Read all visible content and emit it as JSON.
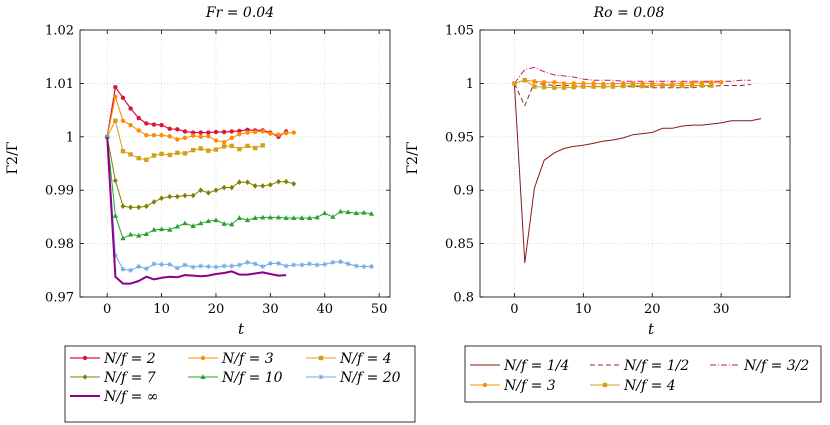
{
  "chart_data": [
    {
      "type": "line",
      "title": "Fr = 0.04",
      "xlabel": "t",
      "ylabel": "Γ2/Γ",
      "xlim": [
        -5,
        52
      ],
      "ylim": [
        0.97,
        1.02
      ],
      "xticks": [
        0,
        10,
        20,
        30,
        40,
        50
      ],
      "xtick_labels": [
        "0",
        "10",
        "20",
        "30",
        "40",
        "50"
      ],
      "yticks": [
        0.97,
        0.98,
        0.99,
        1.0,
        1.01,
        1.02
      ],
      "ytick_labels": [
        "0.97",
        "0.98",
        "0.99",
        "1",
        "1.01",
        "1.02"
      ],
      "grid": true,
      "legend": "below, 3 columns",
      "series": [
        {
          "name": "N/f = 2",
          "color": "#dc143c",
          "marker": "circle",
          "dash": "solid",
          "width": 1.2,
          "x": [
            0,
            1.5,
            2.9,
            4.3,
            5.8,
            7.2,
            8.6,
            10,
            11.5,
            12.9,
            14.3,
            15.8,
            17.2,
            18.6,
            20,
            21.5,
            22.9,
            24.3,
            25.8,
            27.2,
            28.6,
            30,
            31.5,
            32.9
          ],
          "y": [
            1.0,
            1.0093,
            1.0073,
            1.0053,
            1.0035,
            1.0025,
            1.0023,
            1.0022,
            1.0015,
            1.0014,
            1.001,
            1.0008,
            1.0008,
            1.0008,
            1.0009,
            1.0009,
            1.001,
            1.0011,
            1.0013,
            1.0012,
            1.0012,
            1.0008,
            1.0,
            1.001
          ]
        },
        {
          "name": "N/f = 3",
          "color": "#ff8c00",
          "marker": "circle",
          "dash": "solid",
          "width": 1.0,
          "x": [
            0,
            1.5,
            2.9,
            4.3,
            5.8,
            7.2,
            8.6,
            10,
            11.5,
            12.9,
            14.3,
            15.8,
            17.2,
            18.6,
            20,
            21.5,
            22.9,
            24.3,
            25.8,
            27.2,
            28.6,
            30,
            31.5,
            32.9,
            34.3
          ],
          "y": [
            1.0,
            1.0075,
            1.003,
            1.0022,
            1.0012,
            1.0003,
            1.0003,
            1.0003,
            1.0001,
            0.9995,
            0.9998,
            1.0002,
            1.0,
            1.0001,
            0.9993,
            0.999,
            0.9998,
            1.0005,
            1.0008,
            1.0009,
            1.001,
            1.0006,
            1.0004,
            1.0007,
            1.0008
          ]
        },
        {
          "name": "N/f = 4",
          "color": "#d4a017",
          "marker": "square",
          "dash": "solid",
          "width": 1.0,
          "x": [
            0,
            1.5,
            2.9,
            4.3,
            5.8,
            7.2,
            8.6,
            10,
            11.5,
            12.9,
            14.3,
            15.8,
            17.2,
            18.6,
            20,
            21.5,
            22.9,
            24.3,
            25.8,
            27.2,
            28.6
          ],
          "y": [
            1.0,
            1.003,
            0.9973,
            0.9967,
            0.996,
            0.9957,
            0.9965,
            0.9968,
            0.9966,
            0.997,
            0.9969,
            0.9975,
            0.9978,
            0.9974,
            0.9976,
            0.9982,
            0.9983,
            0.9977,
            0.9983,
            0.9979,
            0.9984
          ]
        },
        {
          "name": "N/f = 7",
          "color": "#808000",
          "marker": "diamond",
          "dash": "solid",
          "width": 1.0,
          "x": [
            0,
            1.5,
            2.9,
            4.3,
            5.8,
            7.2,
            8.6,
            10,
            11.5,
            12.9,
            14.3,
            15.8,
            17.2,
            18.6,
            20,
            21.5,
            22.9,
            24.3,
            25.8,
            27.2,
            28.6,
            30,
            31.5,
            32.9,
            34.3
          ],
          "y": [
            1.0,
            0.9918,
            0.987,
            0.9868,
            0.9868,
            0.987,
            0.9878,
            0.9885,
            0.9888,
            0.9888,
            0.989,
            0.989,
            0.99,
            0.9895,
            0.99,
            0.9905,
            0.9905,
            0.9915,
            0.9915,
            0.9908,
            0.9908,
            0.991,
            0.9916,
            0.9916,
            0.9912
          ]
        },
        {
          "name": "N/f = 10",
          "color": "#2ca02c",
          "marker": "triangle",
          "dash": "solid",
          "width": 1.0,
          "x": [
            0,
            1.5,
            2.9,
            4.3,
            5.8,
            7.2,
            8.6,
            10,
            11.5,
            12.9,
            14.3,
            15.8,
            17.2,
            18.6,
            20,
            21.5,
            22.9,
            24.3,
            25.8,
            27.2,
            28.6,
            30,
            31.5,
            32.9,
            34.3,
            35.8,
            37.2,
            38.6,
            40,
            41.5,
            42.9,
            44.3,
            45.8,
            47.2,
            48.6
          ],
          "y": [
            1.0,
            0.9852,
            0.981,
            0.9817,
            0.9815,
            0.9818,
            0.9826,
            0.9827,
            0.9826,
            0.9832,
            0.9838,
            0.9833,
            0.9838,
            0.9842,
            0.9844,
            0.9837,
            0.9836,
            0.9848,
            0.9844,
            0.9848,
            0.9849,
            0.9849,
            0.9849,
            0.9848,
            0.9848,
            0.9848,
            0.9848,
            0.9849,
            0.9857,
            0.985,
            0.986,
            0.9859,
            0.9857,
            0.9858,
            0.9856
          ]
        },
        {
          "name": "N/f = 20",
          "color": "#6fa8ea",
          "marker": "star",
          "dash": "solid",
          "width": 1.0,
          "x": [
            0,
            1.5,
            2.9,
            4.3,
            5.8,
            7.2,
            8.6,
            10,
            11.5,
            12.9,
            14.3,
            15.8,
            17.2,
            18.6,
            20,
            21.5,
            22.9,
            24.3,
            25.8,
            27.2,
            28.6,
            30,
            31.5,
            32.9,
            34.3,
            35.8,
            37.2,
            38.6,
            40,
            41.5,
            42.9,
            44.3,
            45.8,
            47.2,
            48.6
          ],
          "y": [
            1.0,
            0.9778,
            0.9752,
            0.975,
            0.9757,
            0.9753,
            0.9762,
            0.9761,
            0.9761,
            0.9754,
            0.976,
            0.9756,
            0.9758,
            0.9757,
            0.9756,
            0.9758,
            0.9758,
            0.976,
            0.9765,
            0.9762,
            0.9757,
            0.9763,
            0.9763,
            0.9758,
            0.976,
            0.976,
            0.9762,
            0.976,
            0.9761,
            0.9765,
            0.9766,
            0.9762,
            0.9758,
            0.9757,
            0.9757
          ]
        },
        {
          "name": "N/f = ∞",
          "color": "#8b008b",
          "marker": "none",
          "dash": "solid",
          "width": 2.0,
          "x": [
            0,
            1.5,
            2.9,
            4.3,
            5.8,
            7.2,
            8.6,
            10,
            11.5,
            12.9,
            14.3,
            15.8,
            17.2,
            18.6,
            20,
            21.5,
            22.9,
            24.3,
            25.8,
            27.2,
            28.6,
            30,
            31.5,
            32.9
          ],
          "y": [
            1.0,
            0.9738,
            0.9725,
            0.9725,
            0.973,
            0.9738,
            0.9733,
            0.9736,
            0.9738,
            0.9737,
            0.9741,
            0.974,
            0.9739,
            0.974,
            0.9743,
            0.9745,
            0.9748,
            0.9742,
            0.9742,
            0.9744,
            0.9746,
            0.9743,
            0.974,
            0.9741
          ]
        }
      ]
    },
    {
      "type": "line",
      "title": "Ro = 0.08",
      "xlabel": "t",
      "ylabel": "Γ2/Γ",
      "xlim": [
        -5,
        40
      ],
      "ylim": [
        0.8,
        1.05
      ],
      "xticks": [
        0,
        10,
        20,
        30
      ],
      "xtick_labels": [
        "0",
        "10",
        "20",
        "30"
      ],
      "yticks": [
        0.8,
        0.85,
        0.9,
        0.95,
        1.0,
        1.05
      ],
      "ytick_labels": [
        "0.8",
        "0.85",
        "0.9",
        "0.95",
        "1",
        "1.05"
      ],
      "grid": true,
      "legend": "below, 3 columns",
      "series": [
        {
          "name": "N/f = 1/4",
          "color": "#8b1a1a",
          "marker": "none",
          "dash": "solid",
          "width": 1.0,
          "x": [
            0,
            1.5,
            2.9,
            4.3,
            5.8,
            7.2,
            8.6,
            10,
            11.5,
            12.9,
            14.3,
            15.8,
            17.2,
            18.6,
            20,
            21.5,
            22.9,
            24.3,
            25.8,
            27.2,
            28.6,
            30,
            31.5,
            32.9,
            34.3,
            35.8
          ],
          "y": [
            1.0,
            0.832,
            0.902,
            0.928,
            0.935,
            0.939,
            0.941,
            0.942,
            0.944,
            0.946,
            0.947,
            0.949,
            0.952,
            0.953,
            0.954,
            0.958,
            0.958,
            0.96,
            0.961,
            0.961,
            0.962,
            0.963,
            0.965,
            0.965,
            0.965,
            0.967
          ]
        },
        {
          "name": "N/f = 1/2",
          "color": "#8b2a2a",
          "marker": "none",
          "dash": "5,3",
          "width": 1.0,
          "x": [
            0,
            1.5,
            2.9,
            4.3,
            5.8,
            7.2,
            8.6,
            10,
            11.5,
            12.9,
            14.3,
            15.8,
            17.2,
            18.6,
            20,
            21.5,
            22.9,
            24.3,
            25.8,
            27.2,
            28.6,
            30,
            31.5,
            32.9,
            34.3
          ],
          "y": [
            1.0,
            0.979,
            1.001,
            0.999,
            0.998,
            0.998,
            0.998,
            0.997,
            0.997,
            0.997,
            0.997,
            0.997,
            0.997,
            0.997,
            0.996,
            0.996,
            0.996,
            0.996,
            0.996,
            0.997,
            0.997,
            0.998,
            0.998,
            0.998,
            0.999
          ]
        },
        {
          "name": "N/f = 3/2",
          "color": "#c71585",
          "marker": "none",
          "dash": "6,2,1,2",
          "width": 1.0,
          "x": [
            0,
            1.5,
            2.9,
            4.3,
            5.8,
            7.2,
            8.6,
            10,
            11.5,
            12.9,
            14.3,
            15.8,
            17.2,
            18.6,
            20,
            21.5,
            22.9,
            24.3,
            25.8,
            27.2,
            28.6,
            30,
            31.5,
            32.9,
            34.3
          ],
          "y": [
            1.0,
            1.013,
            1.015,
            1.011,
            1.008,
            1.007,
            1.006,
            1.004,
            1.003,
            1.003,
            1.003,
            1.002,
            1.002,
            1.002,
            1.002,
            1.002,
            1.002,
            1.002,
            1.002,
            1.002,
            1.002,
            1.002,
            1.002,
            1.003,
            1.003
          ]
        },
        {
          "name": "N/f = 3",
          "color": "#ff8c00",
          "marker": "circle",
          "dash": "solid",
          "width": 1.0,
          "x": [
            0,
            1.5,
            2.9,
            4.3,
            5.8,
            7.2,
            8.6,
            10,
            11.5,
            12.9,
            14.3,
            15.8,
            17.2,
            18.6,
            20,
            21.5,
            22.9,
            24.3,
            25.8,
            27.2,
            28.6,
            30
          ],
          "y": [
            1.0,
            1.003,
            1.002,
            1.001,
            1.001,
            1.0,
            1.0,
            1.0,
            1.0,
            0.9995,
            0.9995,
            1.0,
            1.0,
            1.0,
            1.0,
            0.999,
            0.9995,
            1.0,
            1.0005,
            1.0005,
            1.001,
            1.001
          ]
        },
        {
          "name": "N/f = 4",
          "color": "#d4a017",
          "marker": "square",
          "dash": "solid",
          "width": 1.0,
          "x": [
            0,
            1.5,
            2.9,
            4.3,
            5.8,
            7.2,
            8.6,
            10,
            11.5,
            12.9,
            14.3,
            15.8,
            17.2,
            18.6,
            20,
            21.5,
            22.9,
            24.3,
            25.8,
            27.2,
            28.6
          ],
          "y": [
            1.0,
            1.003,
            0.997,
            0.9965,
            0.996,
            0.996,
            0.9965,
            0.997,
            0.997,
            0.997,
            0.997,
            0.9975,
            0.998,
            0.9975,
            0.998,
            0.998,
            0.998,
            0.998,
            0.998,
            0.998,
            0.998
          ]
        }
      ]
    }
  ]
}
